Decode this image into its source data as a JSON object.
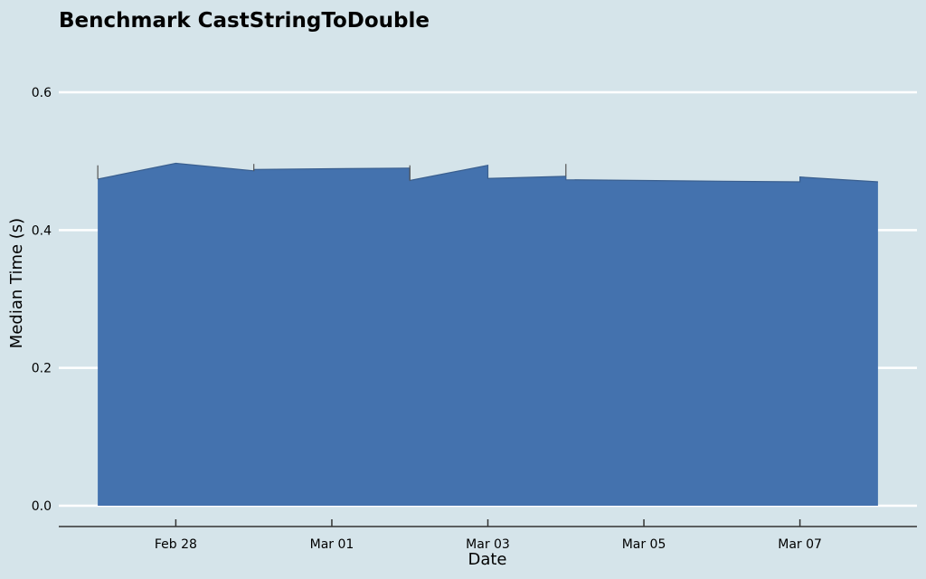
{
  "chart_data": {
    "type": "area",
    "title": "Benchmark CastStringToDouble",
    "xlabel": "Date",
    "ylabel": "Median Time (s)",
    "ylim": [
      0,
      0.65
    ],
    "yticks": [
      0.0,
      0.2,
      0.4,
      0.6
    ],
    "ytick_labels": [
      "0.0",
      "0.2",
      "0.4",
      "0.6"
    ],
    "xticks": [
      "2024-02-28",
      "2024-03-01",
      "2024-03-03",
      "2024-03-05",
      "2024-03-07"
    ],
    "xtick_labels": [
      "Feb 28",
      "Mar 01",
      "Mar 03",
      "Mar 05",
      "Mar 07"
    ],
    "xlim": [
      "2024-02-26T12:00",
      "2024-03-08T12:00"
    ],
    "grid": "horizontal",
    "legend": "none",
    "colors": {
      "fill": "#4472ae",
      "line": "#3a5f8f",
      "grid": "#ffffff",
      "background": "#d5e4ea"
    },
    "series": [
      {
        "x": [
          "2024-02-27T00:00",
          "2024-02-28T00:00",
          "2024-02-29T00:00",
          "2024-02-29T00:00",
          "2024-03-01T00:00",
          "2024-03-02T00:00",
          "2024-03-02T00:00",
          "2024-03-03T00:00",
          "2024-03-03T00:00",
          "2024-03-04T00:00",
          "2024-03-04T00:00",
          "2024-03-05T00:00",
          "2024-03-06T00:00",
          "2024-03-07T00:00",
          "2024-03-07T00:00",
          "2024-03-08T00:00"
        ],
        "values": [
          0.474,
          0.497,
          0.486,
          0.488,
          0.489,
          0.49,
          0.472,
          0.494,
          0.475,
          0.478,
          0.473,
          0.472,
          0.471,
          0.47,
          0.477,
          0.47
        ]
      }
    ],
    "markers": [
      {
        "x": "2024-02-27T00:00",
        "values": [
          0.474,
          0.494
        ]
      },
      {
        "x": "2024-02-29T00:00",
        "values": [
          0.486,
          0.496
        ]
      },
      {
        "x": "2024-03-02T00:00",
        "values": [
          0.472,
          0.494
        ]
      },
      {
        "x": "2024-03-04T00:00",
        "values": [
          0.478,
          0.496
        ]
      }
    ]
  }
}
